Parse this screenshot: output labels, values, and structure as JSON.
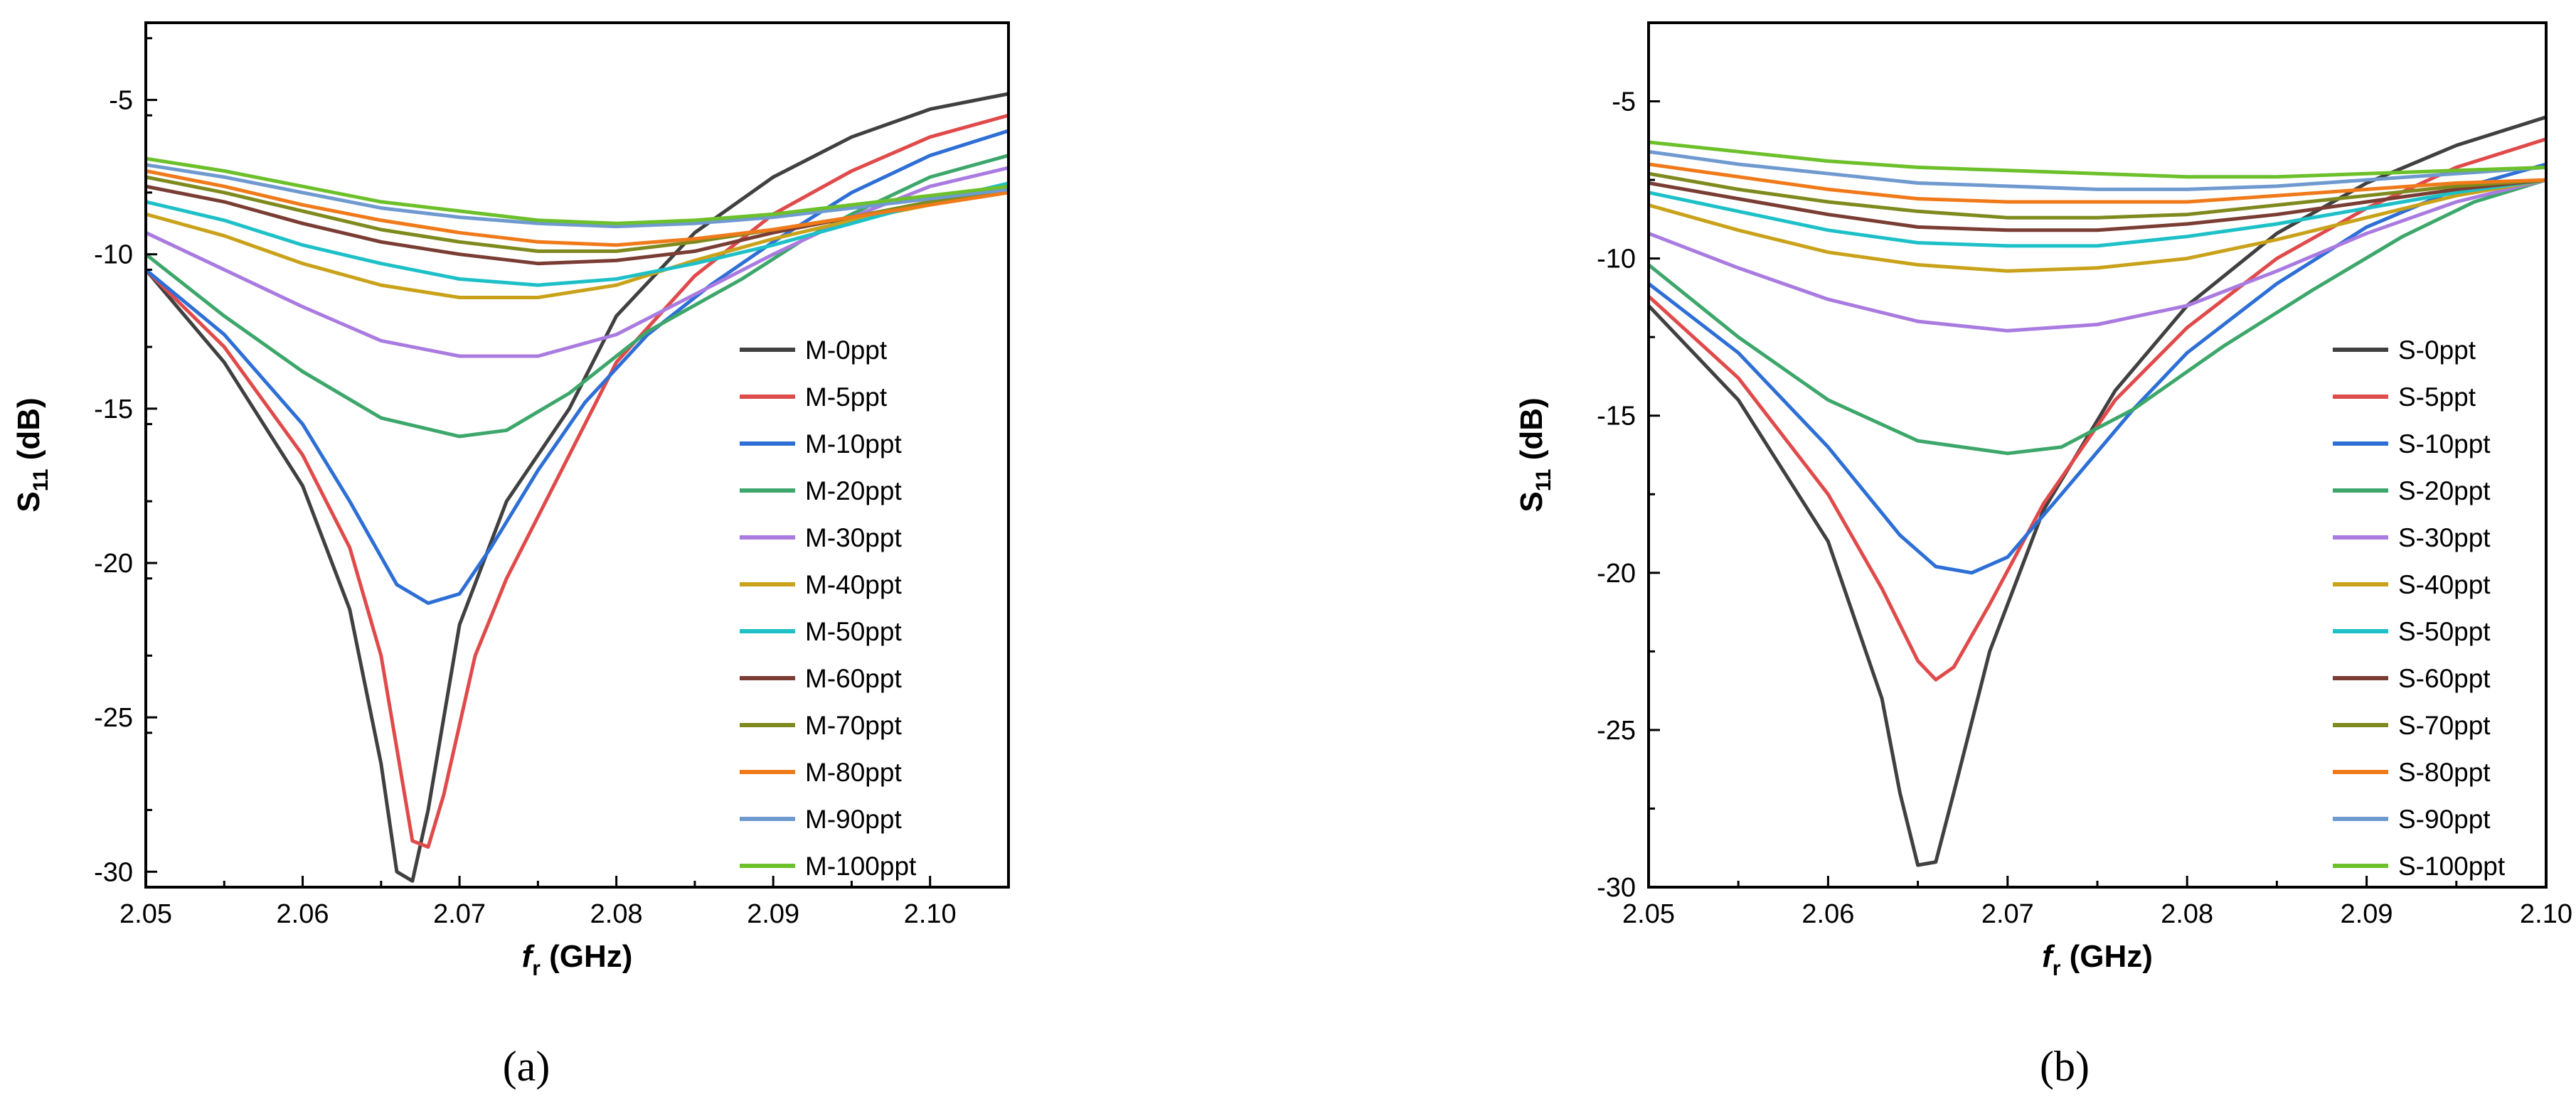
{
  "chart_data": [
    {
      "type": "line",
      "panel_label": "(a)",
      "xlabel": "f",
      "xlabel_sub": "r",
      "xlabel_unit": " (GHz)",
      "ylabel": "S",
      "ylabel_sub": "11",
      "ylabel_unit": " (dB)",
      "xlim": [
        2.05,
        2.105
      ],
      "ylim": [
        -30.5,
        -2.5
      ],
      "xticks": [
        2.05,
        2.06,
        2.07,
        2.08,
        2.09,
        2.1
      ],
      "xtick_labels": [
        "2.05",
        "2.06",
        "2.07",
        "2.08",
        "2.09",
        "2.10"
      ],
      "yticks": [
        -30,
        -25,
        -20,
        -15,
        -10,
        -5
      ],
      "ytick_labels": [
        "-30",
        "-25",
        "-20",
        "-15",
        "-10",
        "-5"
      ],
      "legend_position": "right-center",
      "series": [
        {
          "name": "M-0ppt",
          "color": "#404040",
          "x": [
            2.05,
            2.055,
            2.06,
            2.063,
            2.065,
            2.066,
            2.067,
            2.068,
            2.07,
            2.073,
            2.077,
            2.08,
            2.085,
            2.09,
            2.095,
            2.1,
            2.105
          ],
          "y": [
            -10.5,
            -13.5,
            -17.5,
            -21.5,
            -26.5,
            -30.0,
            -30.3,
            -28.0,
            -22.0,
            -18.0,
            -15.0,
            -12.0,
            -9.3,
            -7.5,
            -6.2,
            -5.3,
            -4.8
          ]
        },
        {
          "name": "M-5ppt",
          "color": "#e04a4a",
          "x": [
            2.05,
            2.055,
            2.06,
            2.063,
            2.065,
            2.066,
            2.067,
            2.068,
            2.069,
            2.071,
            2.073,
            2.077,
            2.08,
            2.085,
            2.09,
            2.095,
            2.1,
            2.105
          ],
          "y": [
            -10.5,
            -13.0,
            -16.5,
            -19.5,
            -23.0,
            -26.0,
            -29.0,
            -29.2,
            -27.5,
            -23.0,
            -20.5,
            -16.5,
            -13.5,
            -10.7,
            -8.7,
            -7.3,
            -6.2,
            -5.5
          ]
        },
        {
          "name": "M-10ppt",
          "color": "#2e6fd6",
          "x": [
            2.05,
            2.055,
            2.06,
            2.063,
            2.066,
            2.068,
            2.07,
            2.072,
            2.075,
            2.078,
            2.082,
            2.086,
            2.09,
            2.095,
            2.1,
            2.105
          ],
          "y": [
            -10.5,
            -12.6,
            -15.5,
            -18.0,
            -20.7,
            -21.3,
            -21.0,
            -19.5,
            -17.0,
            -14.8,
            -12.6,
            -11.0,
            -9.6,
            -8.0,
            -6.8,
            -6.0
          ]
        },
        {
          "name": "M-20ppt",
          "color": "#3da76b",
          "x": [
            2.05,
            2.055,
            2.06,
            2.065,
            2.07,
            2.073,
            2.077,
            2.082,
            2.088,
            2.092,
            2.095,
            2.1,
            2.105
          ],
          "y": [
            -10.0,
            -12.0,
            -13.8,
            -15.3,
            -15.9,
            -15.7,
            -14.5,
            -12.5,
            -10.8,
            -9.5,
            -8.7,
            -7.5,
            -6.8
          ]
        },
        {
          "name": "M-30ppt",
          "color": "#a97be0",
          "x": [
            2.05,
            2.055,
            2.06,
            2.065,
            2.07,
            2.075,
            2.08,
            2.085,
            2.09,
            2.095,
            2.1,
            2.105
          ],
          "y": [
            -9.3,
            -10.5,
            -11.7,
            -12.8,
            -13.3,
            -13.3,
            -12.6,
            -11.3,
            -10.0,
            -8.8,
            -7.8,
            -7.2
          ]
        },
        {
          "name": "M-40ppt",
          "color": "#c9a21a",
          "x": [
            2.05,
            2.055,
            2.06,
            2.065,
            2.07,
            2.075,
            2.08,
            2.085,
            2.09,
            2.095,
            2.1,
            2.105
          ],
          "y": [
            -8.7,
            -9.4,
            -10.3,
            -11.0,
            -11.4,
            -11.4,
            -11.0,
            -10.2,
            -9.5,
            -8.9,
            -8.4,
            -7.9
          ]
        },
        {
          "name": "M-50ppt",
          "color": "#1ec0c8",
          "x": [
            2.05,
            2.055,
            2.06,
            2.065,
            2.07,
            2.075,
            2.08,
            2.085,
            2.09,
            2.095,
            2.1,
            2.105
          ],
          "y": [
            -8.3,
            -8.9,
            -9.7,
            -10.3,
            -10.8,
            -11.0,
            -10.8,
            -10.3,
            -9.7,
            -9.0,
            -8.3,
            -7.7
          ]
        },
        {
          "name": "M-60ppt",
          "color": "#7a3d34",
          "x": [
            2.05,
            2.055,
            2.06,
            2.065,
            2.07,
            2.075,
            2.08,
            2.085,
            2.09,
            2.095,
            2.1,
            2.105
          ],
          "y": [
            -7.8,
            -8.3,
            -9.0,
            -9.6,
            -10.0,
            -10.3,
            -10.2,
            -9.9,
            -9.3,
            -8.8,
            -8.3,
            -7.8
          ]
        },
        {
          "name": "M-70ppt",
          "color": "#7f8a1e",
          "x": [
            2.05,
            2.055,
            2.06,
            2.065,
            2.07,
            2.075,
            2.08,
            2.085,
            2.09,
            2.095,
            2.1,
            2.105
          ],
          "y": [
            -7.5,
            -8.0,
            -8.6,
            -9.2,
            -9.6,
            -9.9,
            -9.9,
            -9.6,
            -9.2,
            -8.8,
            -8.3,
            -7.9
          ]
        },
        {
          "name": "M-80ppt",
          "color": "#f07a1a",
          "x": [
            2.05,
            2.055,
            2.06,
            2.065,
            2.07,
            2.075,
            2.08,
            2.085,
            2.09,
            2.095,
            2.1,
            2.105
          ],
          "y": [
            -7.3,
            -7.8,
            -8.4,
            -8.9,
            -9.3,
            -9.6,
            -9.7,
            -9.5,
            -9.2,
            -8.8,
            -8.4,
            -8.0
          ]
        },
        {
          "name": "M-90ppt",
          "color": "#6f9ad0",
          "x": [
            2.05,
            2.055,
            2.06,
            2.065,
            2.07,
            2.075,
            2.08,
            2.085,
            2.09,
            2.095,
            2.1,
            2.105
          ],
          "y": [
            -7.1,
            -7.5,
            -8.0,
            -8.5,
            -8.8,
            -9.0,
            -9.1,
            -9.0,
            -8.8,
            -8.5,
            -8.2,
            -7.9
          ]
        },
        {
          "name": "M-100ppt",
          "color": "#6cc02a",
          "x": [
            2.05,
            2.055,
            2.06,
            2.065,
            2.07,
            2.075,
            2.08,
            2.085,
            2.09,
            2.095,
            2.1,
            2.105
          ],
          "y": [
            -6.9,
            -7.3,
            -7.8,
            -8.3,
            -8.6,
            -8.9,
            -9.0,
            -8.9,
            -8.7,
            -8.4,
            -8.1,
            -7.8
          ]
        }
      ]
    },
    {
      "type": "line",
      "panel_label": "(b)",
      "xlabel": "f",
      "xlabel_sub": "r",
      "xlabel_unit": " (GHz)",
      "ylabel": "S",
      "ylabel_sub": "11",
      "ylabel_unit": " (dB)",
      "xlim": [
        2.05,
        2.1
      ],
      "ylim": [
        -30,
        -2.5
      ],
      "xticks": [
        2.05,
        2.06,
        2.07,
        2.08,
        2.09,
        2.1
      ],
      "xtick_labels": [
        "2.05",
        "2.06",
        "2.07",
        "2.08",
        "2.09",
        "2.10"
      ],
      "yticks": [
        -30,
        -25,
        -20,
        -15,
        -10,
        -5
      ],
      "ytick_labels": [
        "-30",
        "-25",
        "-20",
        "-15",
        "-10",
        "-5"
      ],
      "legend_position": "right-bottom",
      "series": [
        {
          "name": "S-0ppt",
          "color": "#404040",
          "x": [
            2.05,
            2.055,
            2.06,
            2.063,
            2.064,
            2.065,
            2.066,
            2.067,
            2.069,
            2.072,
            2.076,
            2.08,
            2.085,
            2.09,
            2.095,
            2.1
          ],
          "y": [
            -11.5,
            -14.5,
            -19.0,
            -24.0,
            -27.0,
            -29.3,
            -29.2,
            -27.0,
            -22.5,
            -18.0,
            -14.2,
            -11.5,
            -9.2,
            -7.6,
            -6.4,
            -5.5
          ]
        },
        {
          "name": "S-5ppt",
          "color": "#e04a4a",
          "x": [
            2.05,
            2.055,
            2.06,
            2.063,
            2.065,
            2.066,
            2.067,
            2.069,
            2.072,
            2.076,
            2.08,
            2.085,
            2.09,
            2.095,
            2.1
          ],
          "y": [
            -11.2,
            -13.8,
            -17.5,
            -20.5,
            -22.8,
            -23.4,
            -23.0,
            -21.0,
            -17.8,
            -14.5,
            -12.2,
            -10.0,
            -8.4,
            -7.1,
            -6.2
          ]
        },
        {
          "name": "S-10ppt",
          "color": "#2e6fd6",
          "x": [
            2.05,
            2.055,
            2.06,
            2.064,
            2.066,
            2.068,
            2.07,
            2.073,
            2.077,
            2.08,
            2.085,
            2.09,
            2.095,
            2.1
          ],
          "y": [
            -10.8,
            -13.0,
            -16.0,
            -18.8,
            -19.8,
            -20.0,
            -19.5,
            -17.5,
            -14.8,
            -13.0,
            -10.8,
            -9.0,
            -7.8,
            -7.0
          ]
        },
        {
          "name": "S-20ppt",
          "color": "#3da76b",
          "x": [
            2.05,
            2.055,
            2.06,
            2.065,
            2.07,
            2.073,
            2.077,
            2.082,
            2.087,
            2.092,
            2.096,
            2.1
          ],
          "y": [
            -10.2,
            -12.5,
            -14.5,
            -15.8,
            -16.2,
            -16.0,
            -14.8,
            -12.8,
            -11.0,
            -9.3,
            -8.2,
            -7.5
          ]
        },
        {
          "name": "S-30ppt",
          "color": "#a97be0",
          "x": [
            2.05,
            2.055,
            2.06,
            2.065,
            2.07,
            2.075,
            2.08,
            2.085,
            2.09,
            2.095,
            2.1
          ],
          "y": [
            -9.2,
            -10.3,
            -11.3,
            -12.0,
            -12.3,
            -12.1,
            -11.5,
            -10.4,
            -9.2,
            -8.2,
            -7.5
          ]
        },
        {
          "name": "S-40ppt",
          "color": "#c9a21a",
          "x": [
            2.05,
            2.055,
            2.06,
            2.065,
            2.07,
            2.075,
            2.08,
            2.085,
            2.09,
            2.095,
            2.1
          ],
          "y": [
            -8.3,
            -9.1,
            -9.8,
            -10.2,
            -10.4,
            -10.3,
            -10.0,
            -9.4,
            -8.7,
            -8.0,
            -7.5
          ]
        },
        {
          "name": "S-50ppt",
          "color": "#1ec0c8",
          "x": [
            2.05,
            2.055,
            2.06,
            2.065,
            2.07,
            2.075,
            2.08,
            2.085,
            2.09,
            2.095,
            2.1
          ],
          "y": [
            -7.9,
            -8.5,
            -9.1,
            -9.5,
            -9.6,
            -9.6,
            -9.3,
            -8.9,
            -8.4,
            -7.9,
            -7.5
          ]
        },
        {
          "name": "S-60ppt",
          "color": "#7a3d34",
          "x": [
            2.05,
            2.055,
            2.06,
            2.065,
            2.07,
            2.075,
            2.08,
            2.085,
            2.09,
            2.095,
            2.1
          ],
          "y": [
            -7.6,
            -8.1,
            -8.6,
            -9.0,
            -9.1,
            -9.1,
            -8.9,
            -8.6,
            -8.2,
            -7.8,
            -7.5
          ]
        },
        {
          "name": "S-70ppt",
          "color": "#7f8a1e",
          "x": [
            2.05,
            2.055,
            2.06,
            2.065,
            2.07,
            2.075,
            2.08,
            2.085,
            2.09,
            2.095,
            2.1
          ],
          "y": [
            -7.3,
            -7.8,
            -8.2,
            -8.5,
            -8.7,
            -8.7,
            -8.6,
            -8.3,
            -8.0,
            -7.7,
            -7.5
          ]
        },
        {
          "name": "S-80ppt",
          "color": "#f07a1a",
          "x": [
            2.05,
            2.055,
            2.06,
            2.065,
            2.07,
            2.075,
            2.08,
            2.085,
            2.09,
            2.095,
            2.1
          ],
          "y": [
            -7.0,
            -7.4,
            -7.8,
            -8.1,
            -8.2,
            -8.2,
            -8.2,
            -8.0,
            -7.8,
            -7.6,
            -7.5
          ]
        },
        {
          "name": "S-90ppt",
          "color": "#6f9ad0",
          "x": [
            2.05,
            2.055,
            2.06,
            2.065,
            2.07,
            2.075,
            2.08,
            2.085,
            2.09,
            2.095,
            2.1
          ],
          "y": [
            -6.6,
            -7.0,
            -7.3,
            -7.6,
            -7.7,
            -7.8,
            -7.8,
            -7.7,
            -7.5,
            -7.3,
            -7.1
          ]
        },
        {
          "name": "S-100ppt",
          "color": "#6cc02a",
          "x": [
            2.05,
            2.055,
            2.06,
            2.065,
            2.07,
            2.075,
            2.08,
            2.085,
            2.09,
            2.095,
            2.1
          ],
          "y": [
            -6.3,
            -6.6,
            -6.9,
            -7.1,
            -7.2,
            -7.3,
            -7.4,
            -7.4,
            -7.3,
            -7.2,
            -7.1
          ]
        }
      ]
    }
  ]
}
